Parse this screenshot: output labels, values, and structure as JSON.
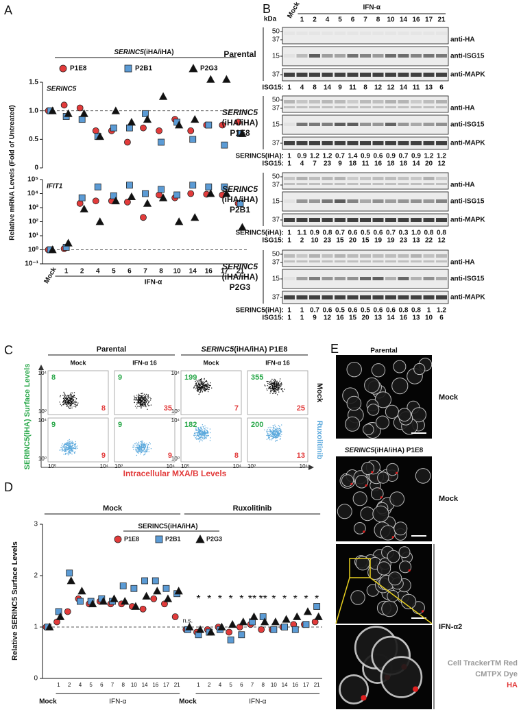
{
  "panel_a": {
    "letter": "A",
    "legend_gene": "SERINC5",
    "legend_allele": "(iHA/iHA)",
    "legend": [
      {
        "name": "P1E8",
        "color": "#e23b3b",
        "marker": "circle"
      },
      {
        "name": "P2B1",
        "color": "#5b9bd5",
        "marker": "square"
      },
      {
        "name": "P2G3",
        "color": "#111111",
        "marker": "triangle"
      }
    ],
    "y_label": "Relative mRNA Levels (Fold of Untreated)",
    "x_group": "IFN-α",
    "categories": [
      "Mock",
      "1",
      "2",
      "4",
      "5",
      "6",
      "7",
      "8",
      "10",
      "14",
      "16",
      "17",
      "21"
    ],
    "charts": [
      {
        "title": "SERINC5",
        "log": false,
        "ylim": [
          0,
          1.5
        ],
        "yticks": [
          0,
          0.5,
          {
            "value": 1,
            "label": "1.0"
          },
          1.5
        ],
        "reference": 1,
        "series": [
          {
            "values": [
              1.0,
              1.1,
              1.05,
              0.65,
              0.65,
              0.45,
              0.7,
              0.65,
              0.85,
              0.65,
              0.75,
              0.75,
              0.8
            ]
          },
          {
            "values": [
              1.0,
              0.9,
              0.85,
              0.55,
              0.7,
              0.7,
              0.95,
              0.45,
              0.8,
              0.5,
              0.75,
              0.4,
              0.6
            ]
          },
          {
            "values": [
              1.0,
              0.95,
              0.95,
              0.55,
              1.0,
              0.8,
              0.85,
              1.25,
              0.75,
              0.85,
              1.55,
              1.55,
              0.6
            ]
          }
        ]
      },
      {
        "title": "IFIT1",
        "log": true,
        "ylim": [
          0.1,
          100000
        ],
        "yticks": [
          {
            "value": 0.1,
            "label": "10⁻¹"
          },
          {
            "value": 1,
            "label": "10⁰"
          },
          {
            "value": 10,
            "label": "10¹"
          },
          {
            "value": 100,
            "label": "10²"
          },
          {
            "value": 1000,
            "label": "10³"
          },
          {
            "value": 10000,
            "label": "10⁴"
          },
          {
            "value": 100000,
            "label": "10⁵"
          }
        ],
        "reference": 1,
        "series": [
          {
            "values": [
              1,
              1.2,
              2000,
              3000,
              3000,
              2500,
              200,
              8000,
              5000,
              10000,
              9000,
              8000,
              2000
            ]
          },
          {
            "values": [
              1,
              1.5,
              5000,
              30000,
              7000,
              40000,
              10000,
              20000,
              8000,
              40000,
              30000,
              30000,
              2000
            ]
          },
          {
            "values": [
              1,
              3,
              800,
              100,
              3000,
              6000,
              2000,
              5000,
              100,
              200,
              10000,
              10000,
              40
            ]
          }
        ]
      }
    ]
  },
  "panel_b": {
    "letter": "B",
    "kda": "kDa",
    "lanes": [
      "Mock",
      "1",
      "2",
      "4",
      "5",
      "6",
      "7",
      "8",
      "10",
      "14",
      "16",
      "17",
      "21"
    ],
    "treatment": "IFN-α",
    "antibodies": [
      "anti-HA",
      "anti-ISG15",
      "anti-MAPK"
    ],
    "blocks": [
      {
        "label_lines": [
          "Parental"
        ],
        "italic_first": false,
        "markers": [
          [
            "50",
            "37"
          ],
          [
            "15"
          ],
          [
            "37"
          ]
        ],
        "quant": [
          {
            "label": "ISG15:",
            "values": [
              1,
              4,
              8,
              14,
              9,
              11,
              8,
              12,
              12,
              14,
              11,
              13,
              6
            ]
          }
        ]
      },
      {
        "label_lines": [
          "SERINC5",
          "(iHA/iHA)",
          "P1E8"
        ],
        "italic_first": true,
        "markers": [
          [
            "50",
            "37"
          ],
          [
            "15"
          ],
          [
            "37"
          ]
        ],
        "quant": [
          {
            "label": "SERINC5(iHA):",
            "values": [
              1,
              0.9,
              1.2,
              1.2,
              0.7,
              1.4,
              0.9,
              0.6,
              0.9,
              0.7,
              0.9,
              1.2,
              1.2
            ]
          },
          {
            "label": "ISG15:",
            "values": [
              1,
              4,
              7,
              23,
              9,
              18,
              11,
              16,
              18,
              18,
              14,
              20,
              12
            ]
          }
        ]
      },
      {
        "label_lines": [
          "SERINC5",
          "(iHA/iHA)",
          "P2B1"
        ],
        "italic_first": true,
        "markers": [
          [
            "50",
            "37"
          ],
          [
            "15"
          ],
          [
            "37"
          ]
        ],
        "quant": [
          {
            "label": "SERINC5(iHA):",
            "values": [
              1,
              1.1,
              0.9,
              0.8,
              0.7,
              0.6,
              0.5,
              0.6,
              0.7,
              0.3,
              {
                "value": 1,
                "label": "1.0"
              },
              0.8,
              0.8
            ]
          },
          {
            "label": "ISG15:",
            "values": [
              1,
              2,
              10,
              23,
              15,
              20,
              15,
              19,
              19,
              23,
              13,
              22,
              12
            ]
          }
        ]
      },
      {
        "label_lines": [
          "SERINC5",
          "(iHA/iHA)",
          "P2G3"
        ],
        "italic_first": true,
        "markers": [
          [
            "50",
            "37"
          ],
          [
            "15"
          ],
          [
            "37"
          ]
        ],
        "quant": [
          {
            "label": "SERINC5(iHA):",
            "values": [
              1,
              1,
              0.7,
              0.6,
              0.5,
              0.6,
              0.5,
              0.6,
              0.6,
              0.8,
              0.8,
              1,
              1.2
            ]
          },
          {
            "label": "ISG15:",
            "values": [
              1,
              1,
              9,
              12,
              16,
              15,
              20,
              13,
              14,
              16,
              13,
              10,
              6
            ]
          }
        ]
      }
    ]
  },
  "panel_c": {
    "letter": "C",
    "groups": [
      {
        "parts": [
          "Parental"
        ],
        "italic_first": false
      },
      {
        "parts": [
          "SERINC5",
          "(iHA/iHA) P1E8"
        ],
        "italic_first": true
      }
    ],
    "columns": [
      "Mock",
      "IFN-α 16",
      "Mock",
      "IFN-α 16"
    ],
    "rows": [
      {
        "label": "Mock",
        "color": "#111111",
        "cells": [
          [
            8,
            8
          ],
          [
            9,
            35
          ],
          [
            199,
            7
          ],
          [
            355,
            25
          ]
        ]
      },
      {
        "label": "Ruxolitinib",
        "color": "#5aa8dc",
        "cells": [
          [
            9,
            9
          ],
          [
            9,
            9
          ],
          [
            182,
            8
          ],
          [
            200,
            13
          ]
        ]
      }
    ],
    "axis_min_label": "10⁰",
    "axis_max_label": "10⁴",
    "y_label": "SERINC5(iHA) Surface Levels",
    "x_label": "Intracellular MXA/B Levels",
    "y_color": "#2aa84a",
    "x_color": "#e23b3b"
  },
  "panel_d": {
    "letter": "D",
    "legend_gene": "SERINC5",
    "legend_allele": "(iHA/iHA)",
    "y_label": "Relative SERINC5 Surface Levels",
    "groups": [
      {
        "label": "Mock",
        "sub": [
          "Mock",
          "IFN-α"
        ]
      },
      {
        "label": "Ruxolitinib",
        "sub": [
          "Mock",
          "IFN-α"
        ]
      }
    ],
    "categories": [
      "Mock",
      "1",
      "2",
      "4",
      "5",
      "6",
      "7",
      "8",
      "10",
      "14",
      "16",
      "17",
      "21",
      "Mock",
      "1",
      "2",
      "4",
      "5",
      "6",
      "7",
      "8",
      "10",
      "14",
      "16",
      "17",
      "21"
    ],
    "ylim": [
      0,
      3
    ],
    "yticks": [
      0,
      1,
      2,
      3
    ],
    "reference": 1,
    "series": [
      {
        "values": [
          1,
          1.1,
          1.3,
          1.55,
          1.45,
          1.5,
          1.45,
          1.45,
          1.4,
          1.35,
          1.55,
          1.45,
          1.2,
          0.95,
          0.9,
          0.95,
          1.0,
          0.9,
          1.0,
          1.05,
          0.95,
          0.95,
          1.0,
          1.05,
          1.05,
          1.1
        ]
      },
      {
        "values": [
          1,
          1.3,
          2.05,
          1.5,
          1.5,
          1.55,
          1.5,
          1.8,
          1.75,
          1.9,
          1.9,
          1.75,
          1.65,
          0.95,
          0.85,
          0.9,
          0.95,
          0.75,
          0.85,
          1.1,
          1.2,
          0.95,
          1.0,
          0.95,
          1.05,
          1.4
        ]
      },
      {
        "values": [
          1,
          1.2,
          1.9,
          1.7,
          1.45,
          1.5,
          1.55,
          1.5,
          1.4,
          1.6,
          1.7,
          1.55,
          1.7,
          1.0,
          0.95,
          0.9,
          1.0,
          1.05,
          1.1,
          1.2,
          1.1,
          1.1,
          1.15,
          1.2,
          1.3,
          1.2
        ]
      }
    ],
    "significance": [
      "n.s.",
      "*",
      "*",
      "*",
      "*",
      "*",
      "**",
      "**",
      "*",
      "*",
      "*",
      "*",
      "*"
    ]
  },
  "panel_e": {
    "letter": "E",
    "top_label": "Parental",
    "middle_gene": "SERINC5",
    "middle_rest": "(iHA/iHA) P1E8",
    "side_labels": [
      "Mock",
      "Mock",
      "IFN-α2"
    ],
    "legend": [
      {
        "text": "Cell TrackerTM Red",
        "color": "#999999"
      },
      {
        "text": "CMTPX Dye",
        "color": "#999999"
      },
      {
        "text": "HA",
        "color": "#e23b3b"
      }
    ]
  }
}
